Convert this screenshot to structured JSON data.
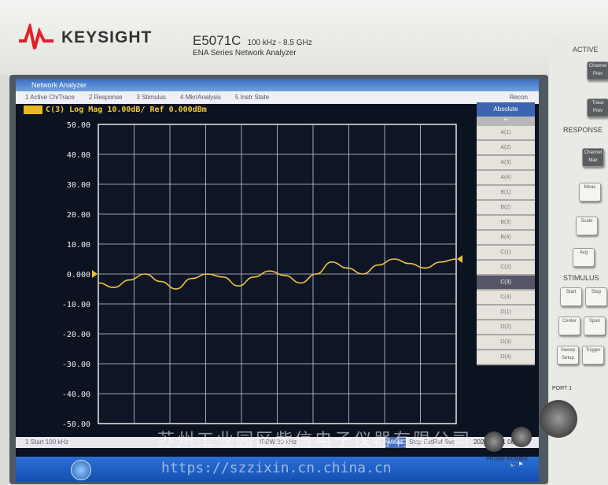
{
  "instrument": {
    "brand": "KEYSIGHT",
    "model": "E5071C",
    "range": "100 kHz - 8.5 GHz",
    "series": "ENA Series  Network Analyzer"
  },
  "window": {
    "title": "Network Analyzer"
  },
  "menu": [
    "1 Active Ch/Trace",
    "2 Response",
    "3 Stimulus",
    "4 Mkr/Analysis",
    "5 Instr State"
  ],
  "menu_right": "Recon",
  "trace_header": "C(3) Log Mag 10.00dB/ Ref 0.000dBm",
  "softkeys": {
    "title": "Absolute",
    "items": [
      "A(1)",
      "A(2)",
      "A(3)",
      "A(4)",
      "B(1)",
      "B(2)",
      "B(3)",
      "B(4)",
      "C(1)",
      "C(2)",
      "C(3)",
      "C(4)",
      "D(1)",
      "D(2)",
      "D(3)",
      "D(4)"
    ],
    "selected": "C(3)"
  },
  "status": {
    "start": "1  Start 100 kHz",
    "rbw": "IFBW 30 kHz",
    "meas": "Meas",
    "mode": "Stop ExtRef Svc",
    "datetime": "2020-07-21 08:32"
  },
  "panel": {
    "sections": [
      "ACTIVE",
      "RESPONSE",
      "STIMULUS"
    ],
    "keys": [
      "Channel Prev",
      "Trace Prev",
      "Channel Max",
      "Meas",
      "Scale",
      "Avg",
      "Start",
      "Stop",
      "Center",
      "Span",
      "Sweep Setup",
      "Trigger"
    ],
    "power_label": "PROBE POWER",
    "port_label": "PORT 1"
  },
  "watermark": {
    "line1": "苏州工业园区紫信电子仪器有限公司",
    "line2": "https://szzixin.cn.china.cn"
  },
  "chart_data": {
    "type": "line",
    "title": "C(3) Log Mag 10.00dB/ Ref 0.000dBm",
    "yticks": [
      "50.00",
      "40.00",
      "30.00",
      "20.00",
      "10.00",
      "0.000",
      "-10.00",
      "-20.00",
      "-30.00",
      "-40.00",
      "-50.00"
    ],
    "ylim": [
      -50,
      50
    ],
    "y_unit": "dB",
    "x_start": "Start 100 kHz",
    "grid": true,
    "trace_color": "#f0c040",
    "values": [
      -3,
      -4.5,
      -2,
      0,
      -2.5,
      -5,
      -1.5,
      0,
      -1,
      -4,
      -1,
      1,
      -0.5,
      -3,
      0,
      4,
      2,
      0,
      3,
      5,
      3.5,
      2,
      4,
      5
    ]
  }
}
